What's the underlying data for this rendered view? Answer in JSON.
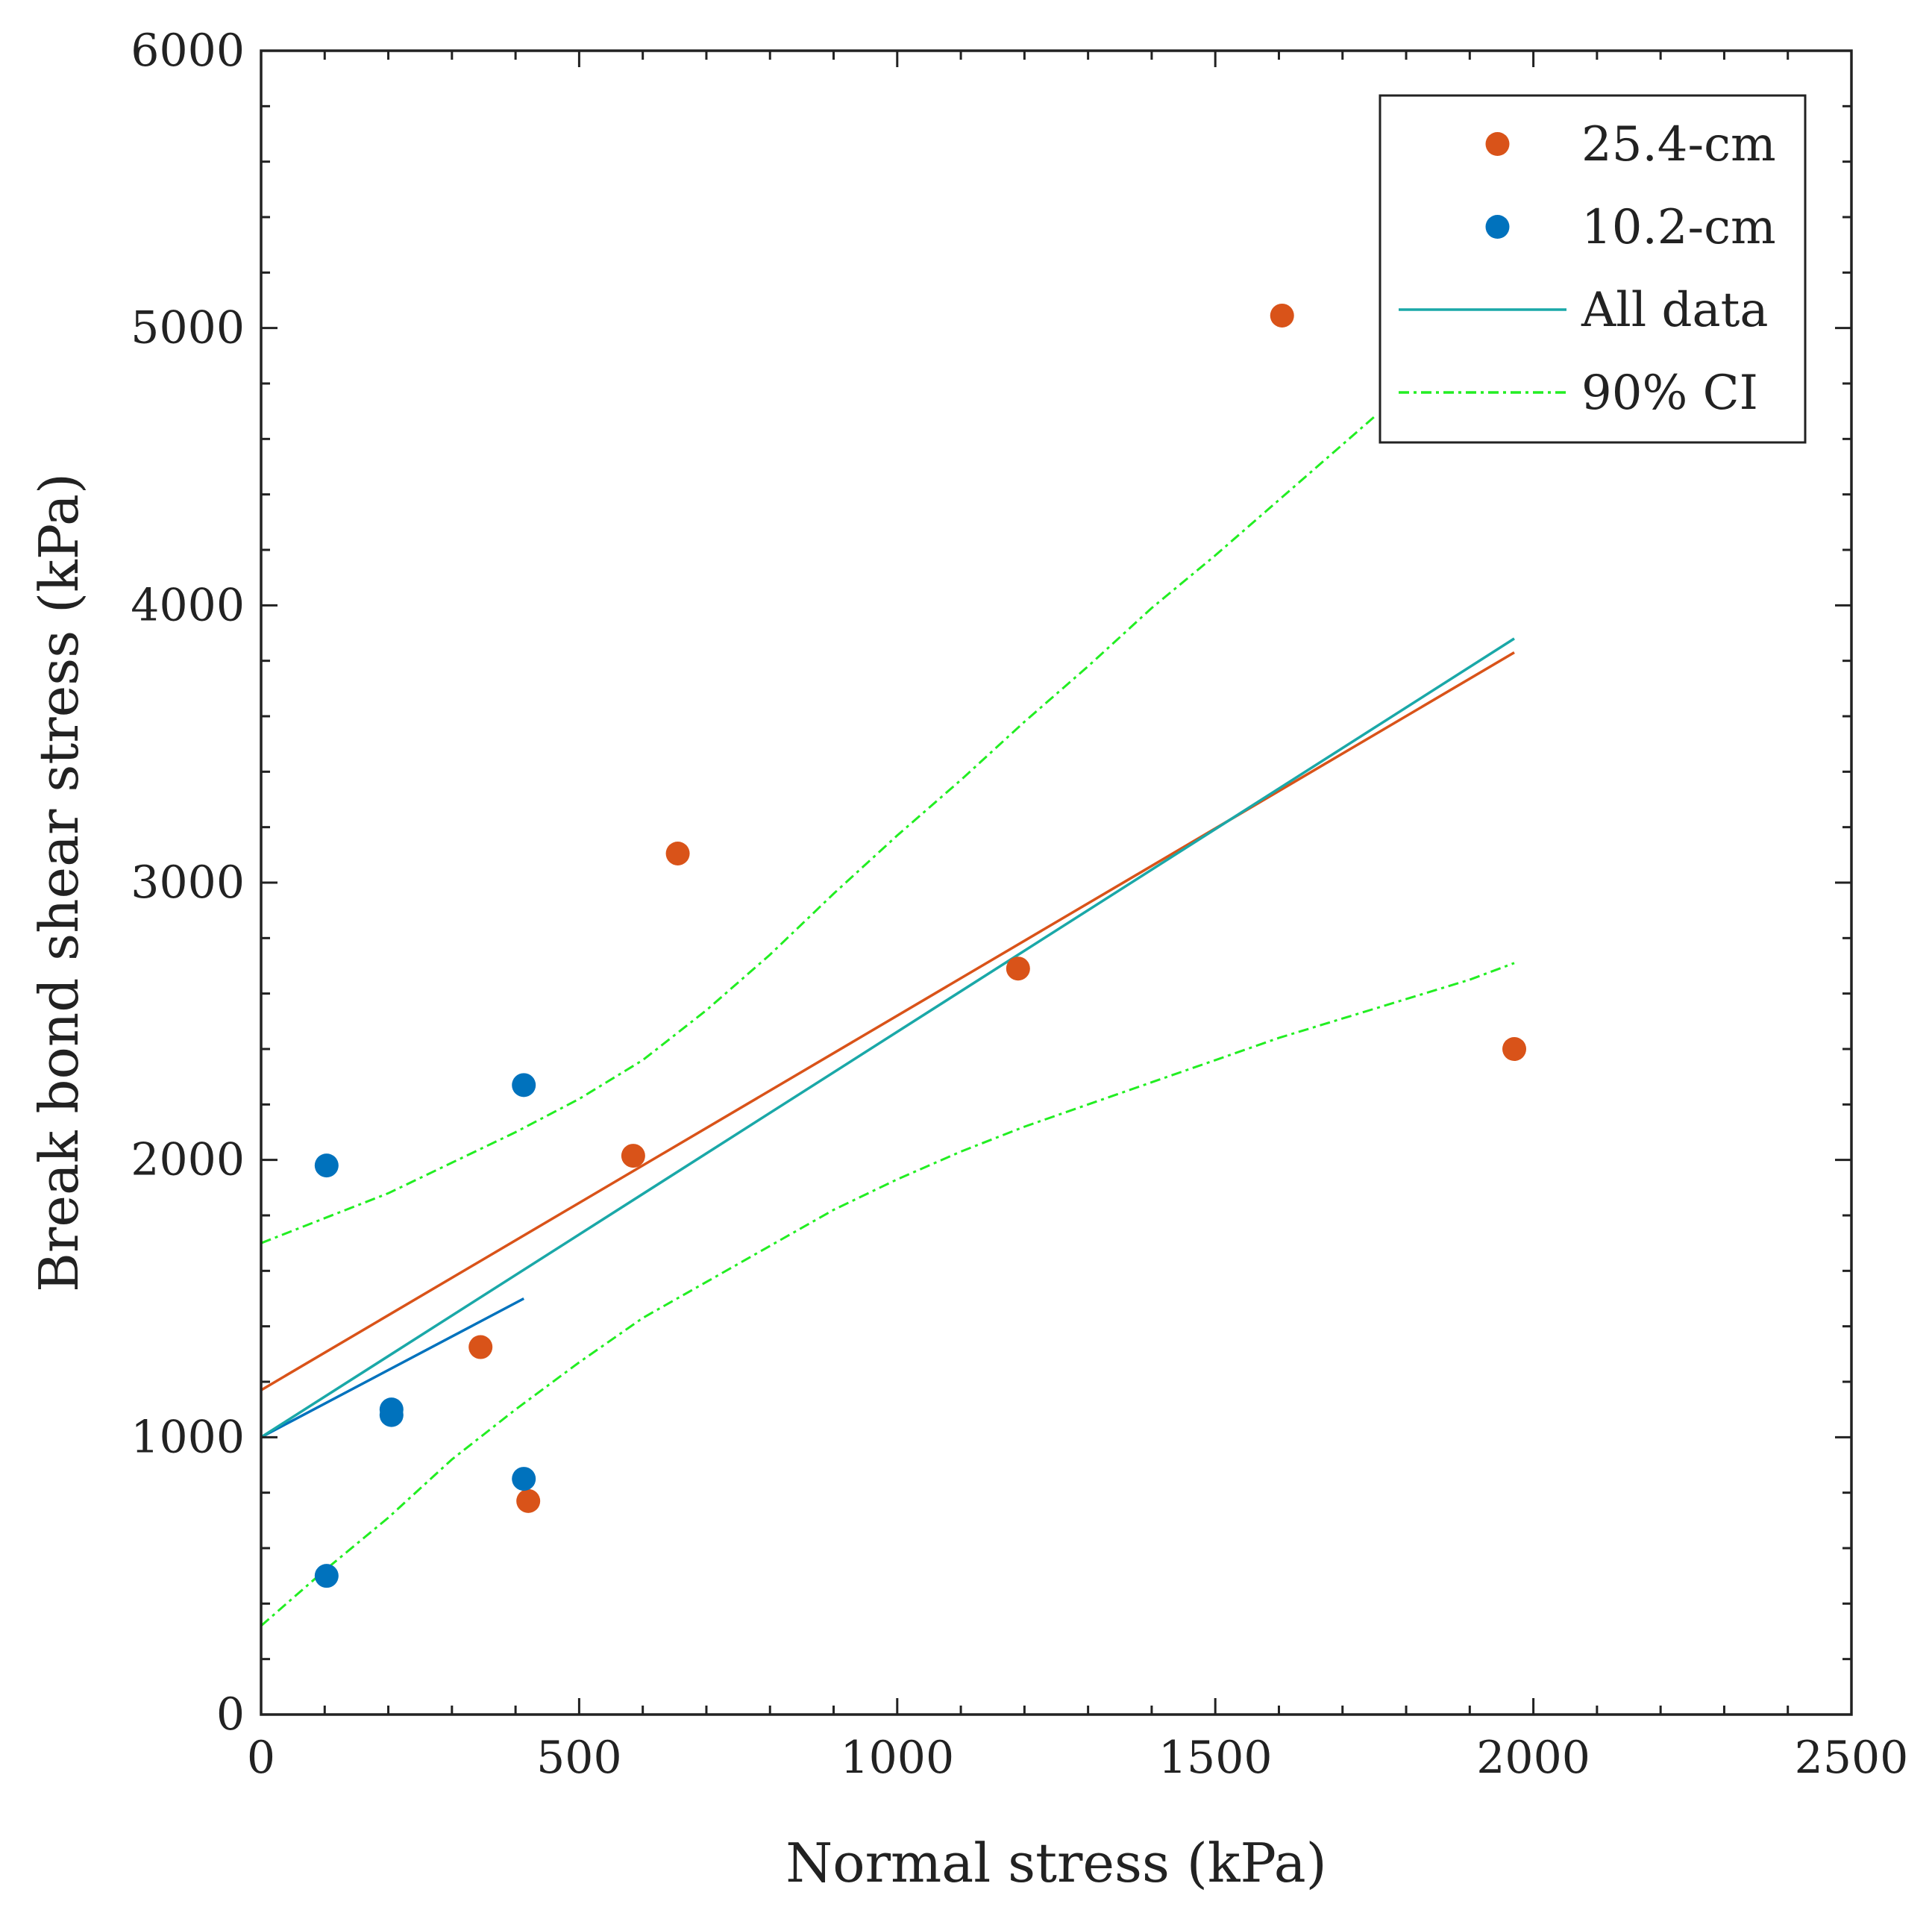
{
  "colors": {
    "series_254": "#d95319",
    "series_102": "#0072bd",
    "all_data": "#1aa8a8",
    "ci": "#22ee22",
    "axis": "#222222"
  },
  "chart_data": {
    "type": "scatter",
    "xlabel": "Normal stress (kPa)",
    "ylabel": "Break bond shear stress (kPa)",
    "xlim": [
      0,
      2500
    ],
    "ylim": [
      0,
      6000
    ],
    "x_ticks": [
      0,
      500,
      1000,
      1500,
      2000,
      2500
    ],
    "y_ticks": [
      0,
      1000,
      2000,
      3000,
      4000,
      5000,
      6000
    ],
    "x_tick_labels": [
      "0",
      "500",
      "1000",
      "1500",
      "2000",
      "2500"
    ],
    "y_tick_labels": [
      "0",
      "1000",
      "2000",
      "3000",
      "4000",
      "5000",
      "6000"
    ],
    "grid": false,
    "legend_position": "top-right",
    "legend": [
      {
        "label": "25.4-cm",
        "marker": "dot",
        "color": "#d95319"
      },
      {
        "label": "10.2-cm",
        "marker": "dot",
        "color": "#0072bd"
      },
      {
        "label": "All data",
        "marker": "line",
        "color": "#1aa8a8"
      },
      {
        "label": "90% CI",
        "marker": "dashdot",
        "color": "#22ee22"
      }
    ],
    "series": [
      {
        "name": "25.4-cm",
        "kind": "points",
        "color": "#d95319",
        "points": [
          [
            345,
            1325
          ],
          [
            420,
            770
          ],
          [
            585,
            2015
          ],
          [
            655,
            3105
          ],
          [
            1190,
            2690
          ],
          [
            1605,
            5045
          ],
          [
            1970,
            2400
          ]
        ]
      },
      {
        "name": "10.2-cm",
        "kind": "points",
        "color": "#0072bd",
        "points": [
          [
            103,
            1980
          ],
          [
            103,
            500
          ],
          [
            205,
            1100
          ],
          [
            205,
            1080
          ],
          [
            413,
            2270
          ],
          [
            413,
            850
          ]
        ]
      },
      {
        "name": "25.4-cm fit",
        "kind": "line",
        "color": "#d95319",
        "points": [
          [
            0,
            1170
          ],
          [
            1970,
            3830
          ]
        ]
      },
      {
        "name": "10.2-cm fit",
        "kind": "line",
        "color": "#0072bd",
        "points": [
          [
            0,
            1000
          ],
          [
            413,
            1500
          ]
        ]
      },
      {
        "name": "All data",
        "kind": "line",
        "color": "#1aa8a8",
        "points": [
          [
            0,
            1000
          ],
          [
            1970,
            3880
          ]
        ]
      },
      {
        "name": "90% CI upper",
        "kind": "dashed",
        "color": "#22ee22",
        "points": [
          [
            0,
            1700
          ],
          [
            100,
            1790
          ],
          [
            200,
            1880
          ],
          [
            300,
            1990
          ],
          [
            400,
            2100
          ],
          [
            500,
            2220
          ],
          [
            600,
            2360
          ],
          [
            700,
            2540
          ],
          [
            800,
            2740
          ],
          [
            900,
            2960
          ],
          [
            1000,
            3170
          ],
          [
            1100,
            3370
          ],
          [
            1200,
            3580
          ],
          [
            1300,
            3780
          ],
          [
            1400,
            3990
          ],
          [
            1500,
            4180
          ],
          [
            1600,
            4380
          ],
          [
            1700,
            4580
          ],
          [
            1750,
            4680
          ]
        ]
      },
      {
        "name": "90% CI lower",
        "kind": "dashed",
        "color": "#22ee22",
        "points": [
          [
            0,
            320
          ],
          [
            100,
            520
          ],
          [
            200,
            710
          ],
          [
            300,
            920
          ],
          [
            400,
            1100
          ],
          [
            500,
            1270
          ],
          [
            600,
            1430
          ],
          [
            700,
            1560
          ],
          [
            800,
            1690
          ],
          [
            900,
            1820
          ],
          [
            1000,
            1930
          ],
          [
            1100,
            2030
          ],
          [
            1200,
            2120
          ],
          [
            1300,
            2200
          ],
          [
            1400,
            2280
          ],
          [
            1500,
            2360
          ],
          [
            1600,
            2440
          ],
          [
            1700,
            2510
          ],
          [
            1800,
            2580
          ],
          [
            1900,
            2650
          ],
          [
            1970,
            2710
          ]
        ]
      }
    ]
  }
}
